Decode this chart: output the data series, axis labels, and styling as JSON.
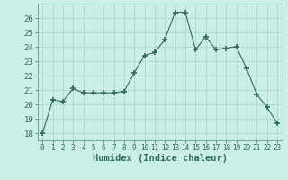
{
  "x": [
    0,
    1,
    2,
    3,
    4,
    5,
    6,
    7,
    8,
    9,
    10,
    11,
    12,
    13,
    14,
    15,
    16,
    17,
    18,
    19,
    20,
    21,
    22,
    23
  ],
  "y": [
    18.0,
    20.3,
    20.2,
    21.1,
    20.8,
    20.8,
    20.8,
    20.8,
    20.9,
    22.2,
    23.4,
    23.6,
    24.5,
    26.4,
    26.4,
    23.8,
    24.7,
    23.8,
    23.9,
    24.0,
    22.5,
    20.7,
    19.8,
    18.7
  ],
  "line_color": "#2e6b5e",
  "marker": "+",
  "marker_size": 4,
  "bg_color": "#cceee8",
  "grid_color": "#b0d8d0",
  "xlabel": "Humidex (Indice chaleur)",
  "ylim": [
    17.5,
    27.0
  ],
  "xlim": [
    -0.5,
    23.5
  ],
  "yticks": [
    18,
    19,
    20,
    21,
    22,
    23,
    24,
    25,
    26
  ],
  "xticks": [
    0,
    1,
    2,
    3,
    4,
    5,
    6,
    7,
    8,
    9,
    10,
    11,
    12,
    13,
    14,
    15,
    16,
    17,
    18,
    19,
    20,
    21,
    22,
    23
  ],
  "xlabel_fontsize": 7.5,
  "tick_fontsize": 6.5,
  "tick_color": "#2e6b5e",
  "label_color": "#2e6b5e",
  "spine_color": "#5a9e8e"
}
